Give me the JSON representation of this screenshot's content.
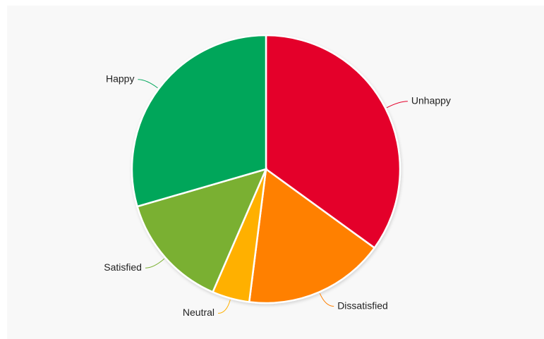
{
  "chart_data": {
    "type": "pie",
    "categories": [
      "Unhappy",
      "Dissatisfied",
      "Neutral",
      "Satisfied",
      "Happy"
    ],
    "values": [
      35,
      17,
      4.5,
      14,
      29.5
    ],
    "colors": [
      "#e4002b",
      "#ff8000",
      "#ffb000",
      "#7ab030",
      "#00a65a"
    ]
  }
}
